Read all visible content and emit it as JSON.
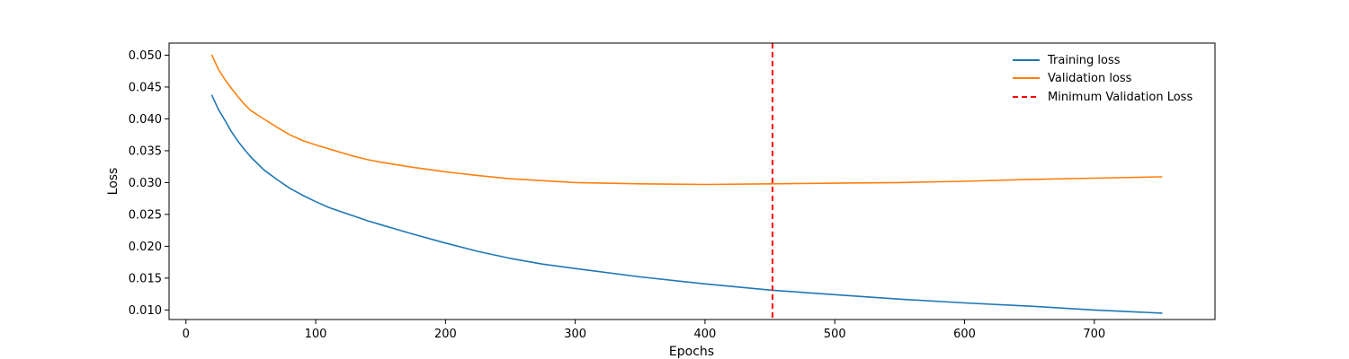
{
  "chart_data": {
    "type": "line",
    "title": "",
    "xlabel": "Epochs",
    "ylabel": "Loss",
    "xlim": [
      -13,
      793
    ],
    "ylim": [
      0.0085,
      0.0519
    ],
    "xticks": [
      0,
      100,
      200,
      300,
      400,
      500,
      600,
      700
    ],
    "xtick_labels": [
      "0",
      "100",
      "200",
      "300",
      "400",
      "500",
      "600",
      "700"
    ],
    "yticks": [
      0.01,
      0.015,
      0.02,
      0.025,
      0.03,
      0.035,
      0.04,
      0.045,
      0.05
    ],
    "ytick_labels": [
      "0.010",
      "0.015",
      "0.020",
      "0.025",
      "0.030",
      "0.035",
      "0.040",
      "0.045",
      "0.050"
    ],
    "grid": false,
    "legend_position": "top-right",
    "series": [
      {
        "name": "Training loss",
        "color": "#1f77b4",
        "x": [
          20,
          25,
          30,
          35,
          40,
          45,
          50,
          60,
          70,
          80,
          90,
          100,
          110,
          120,
          130,
          140,
          150,
          175,
          200,
          225,
          250,
          275,
          300,
          350,
          400,
          452,
          500,
          550,
          600,
          650,
          700,
          752
        ],
        "y": [
          0.0437,
          0.0415,
          0.0398,
          0.038,
          0.0365,
          0.0352,
          0.034,
          0.032,
          0.0305,
          0.0291,
          0.028,
          0.027,
          0.0261,
          0.0254,
          0.0247,
          0.024,
          0.0234,
          0.0219,
          0.0205,
          0.0192,
          0.0181,
          0.0172,
          0.0165,
          0.0152,
          0.0141,
          0.0131,
          0.0124,
          0.0117,
          0.0111,
          0.0106,
          0.01,
          0.0095
        ]
      },
      {
        "name": "Validation loss",
        "color": "#ff7f0e",
        "x": [
          20,
          25,
          30,
          35,
          40,
          45,
          50,
          60,
          70,
          80,
          90,
          100,
          110,
          120,
          130,
          140,
          150,
          175,
          200,
          225,
          250,
          275,
          300,
          350,
          400,
          452,
          500,
          550,
          600,
          650,
          700,
          752
        ],
        "y": [
          0.05,
          0.0478,
          0.0462,
          0.0448,
          0.0435,
          0.0423,
          0.0413,
          0.04,
          0.0387,
          0.0375,
          0.0366,
          0.0359,
          0.0353,
          0.0347,
          0.0341,
          0.0336,
          0.0332,
          0.0324,
          0.0317,
          0.0311,
          0.0306,
          0.0303,
          0.03,
          0.0298,
          0.0297,
          0.0298,
          0.0299,
          0.03,
          0.0302,
          0.0305,
          0.0307,
          0.0309
        ]
      }
    ],
    "vline": {
      "name": "Minimum Validation Loss",
      "x": 452,
      "color": "#ff0000",
      "style": "dashed"
    }
  }
}
